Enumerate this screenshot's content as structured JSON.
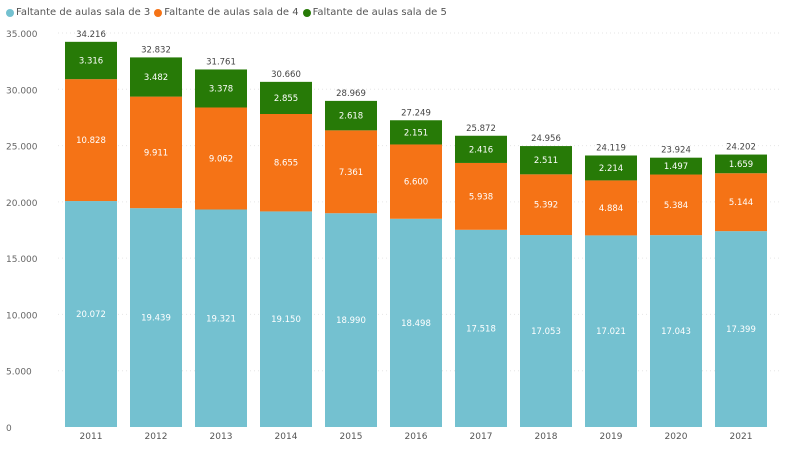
{
  "chart_data": {
    "type": "bar",
    "stacked": true,
    "categories": [
      "2011",
      "2012",
      "2013",
      "2014",
      "2015",
      "2016",
      "2017",
      "2018",
      "2019",
      "2020",
      "2021"
    ],
    "series": [
      {
        "name": "Faltante de aulas sala de 3",
        "color": "#74c1d0",
        "values": [
          20072,
          19439,
          19321,
          19150,
          18990,
          18498,
          17518,
          17053,
          17021,
          17043,
          17399
        ]
      },
      {
        "name": "Faltante de aulas sala de 4",
        "color": "#f57316",
        "values": [
          10828,
          9911,
          9062,
          8655,
          7361,
          6600,
          5938,
          5392,
          4884,
          5384,
          5144
        ]
      },
      {
        "name": "Faltante de aulas sala de 5",
        "color": "#277a07",
        "values": [
          3316,
          3482,
          3378,
          2855,
          2618,
          2151,
          2416,
          2511,
          2214,
          1497,
          1659
        ]
      }
    ],
    "totals": [
      34216,
      32832,
      31761,
      30660,
      28969,
      27249,
      25872,
      24956,
      24119,
      23924,
      24202
    ],
    "ylim": [
      0,
      35000
    ],
    "yticks": [
      0,
      5000,
      10000,
      15000,
      20000,
      25000,
      30000,
      35000
    ],
    "grid": true,
    "legend": "top-left",
    "number_format": "dot thousands separator"
  }
}
